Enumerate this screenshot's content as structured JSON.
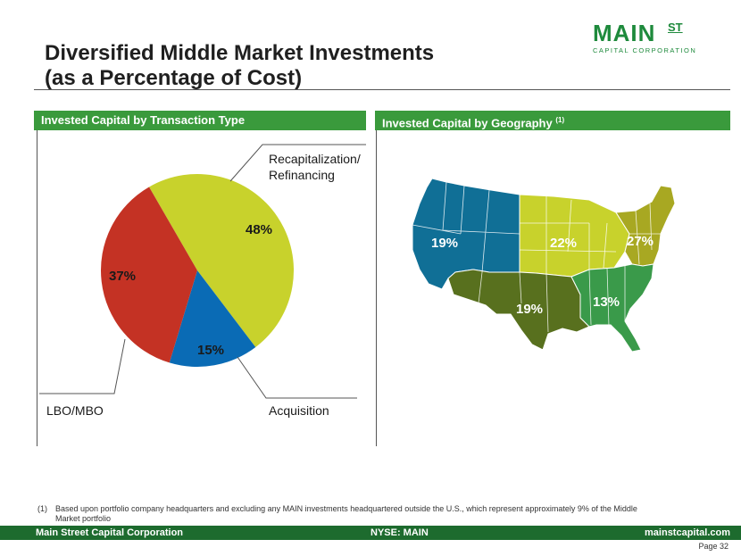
{
  "title_line1": "Diversified Middle Market Investments",
  "title_line2": "(as a Percentage of Cost)",
  "logo": {
    "main": "MAIN",
    "st": "ST",
    "sub": "CAPITAL CORPORATION"
  },
  "panel_left": {
    "title": "Invested Capital by Transaction Type"
  },
  "panel_right": {
    "title": "Invested Capital by Geography",
    "superscript": "(1)"
  },
  "chart_data": [
    {
      "type": "pie",
      "title": "Invested Capital by Transaction Type",
      "slices": [
        {
          "label": "Recapitalization/ Refinancing",
          "value": 48,
          "display": "48%",
          "color": "#c8d22c"
        },
        {
          "label": "Acquisition",
          "value": 15,
          "display": "15%",
          "color": "#0a6bb5"
        },
        {
          "label": "LBO/MBO",
          "value": 37,
          "display": "37%",
          "color": "#c43224"
        }
      ],
      "labels": {
        "recap_line1": "Recapitalization/",
        "recap_line2": "Refinancing",
        "acquisition": "Acquisition",
        "lbo": "LBO/MBO"
      }
    },
    {
      "type": "map",
      "title": "Invested Capital by Geography",
      "regions": [
        {
          "region": "West",
          "value": 19,
          "display": "19%",
          "color": "#106f96"
        },
        {
          "region": "Midwest",
          "value": 22,
          "display": "22%",
          "color": "#c8d22c"
        },
        {
          "region": "Northeast",
          "value": 27,
          "display": "27%",
          "color": "#a8a822"
        },
        {
          "region": "Southwest",
          "value": 19,
          "display": "19%",
          "color": "#58701e"
        },
        {
          "region": "Southeast",
          "value": 13,
          "display": "13%",
          "color": "#3a9a4a"
        }
      ]
    }
  ],
  "footnote": {
    "num": "(1)",
    "text": "Based upon portfolio company headquarters and excluding any MAIN investments headquartered outside the U.S., which represent approximately 9% of the Middle Market portfolio"
  },
  "footer": {
    "left": "Main Street Capital Corporation",
    "center": "NYSE: MAIN",
    "right": "mainstcapital.com"
  },
  "page": "Page  32"
}
